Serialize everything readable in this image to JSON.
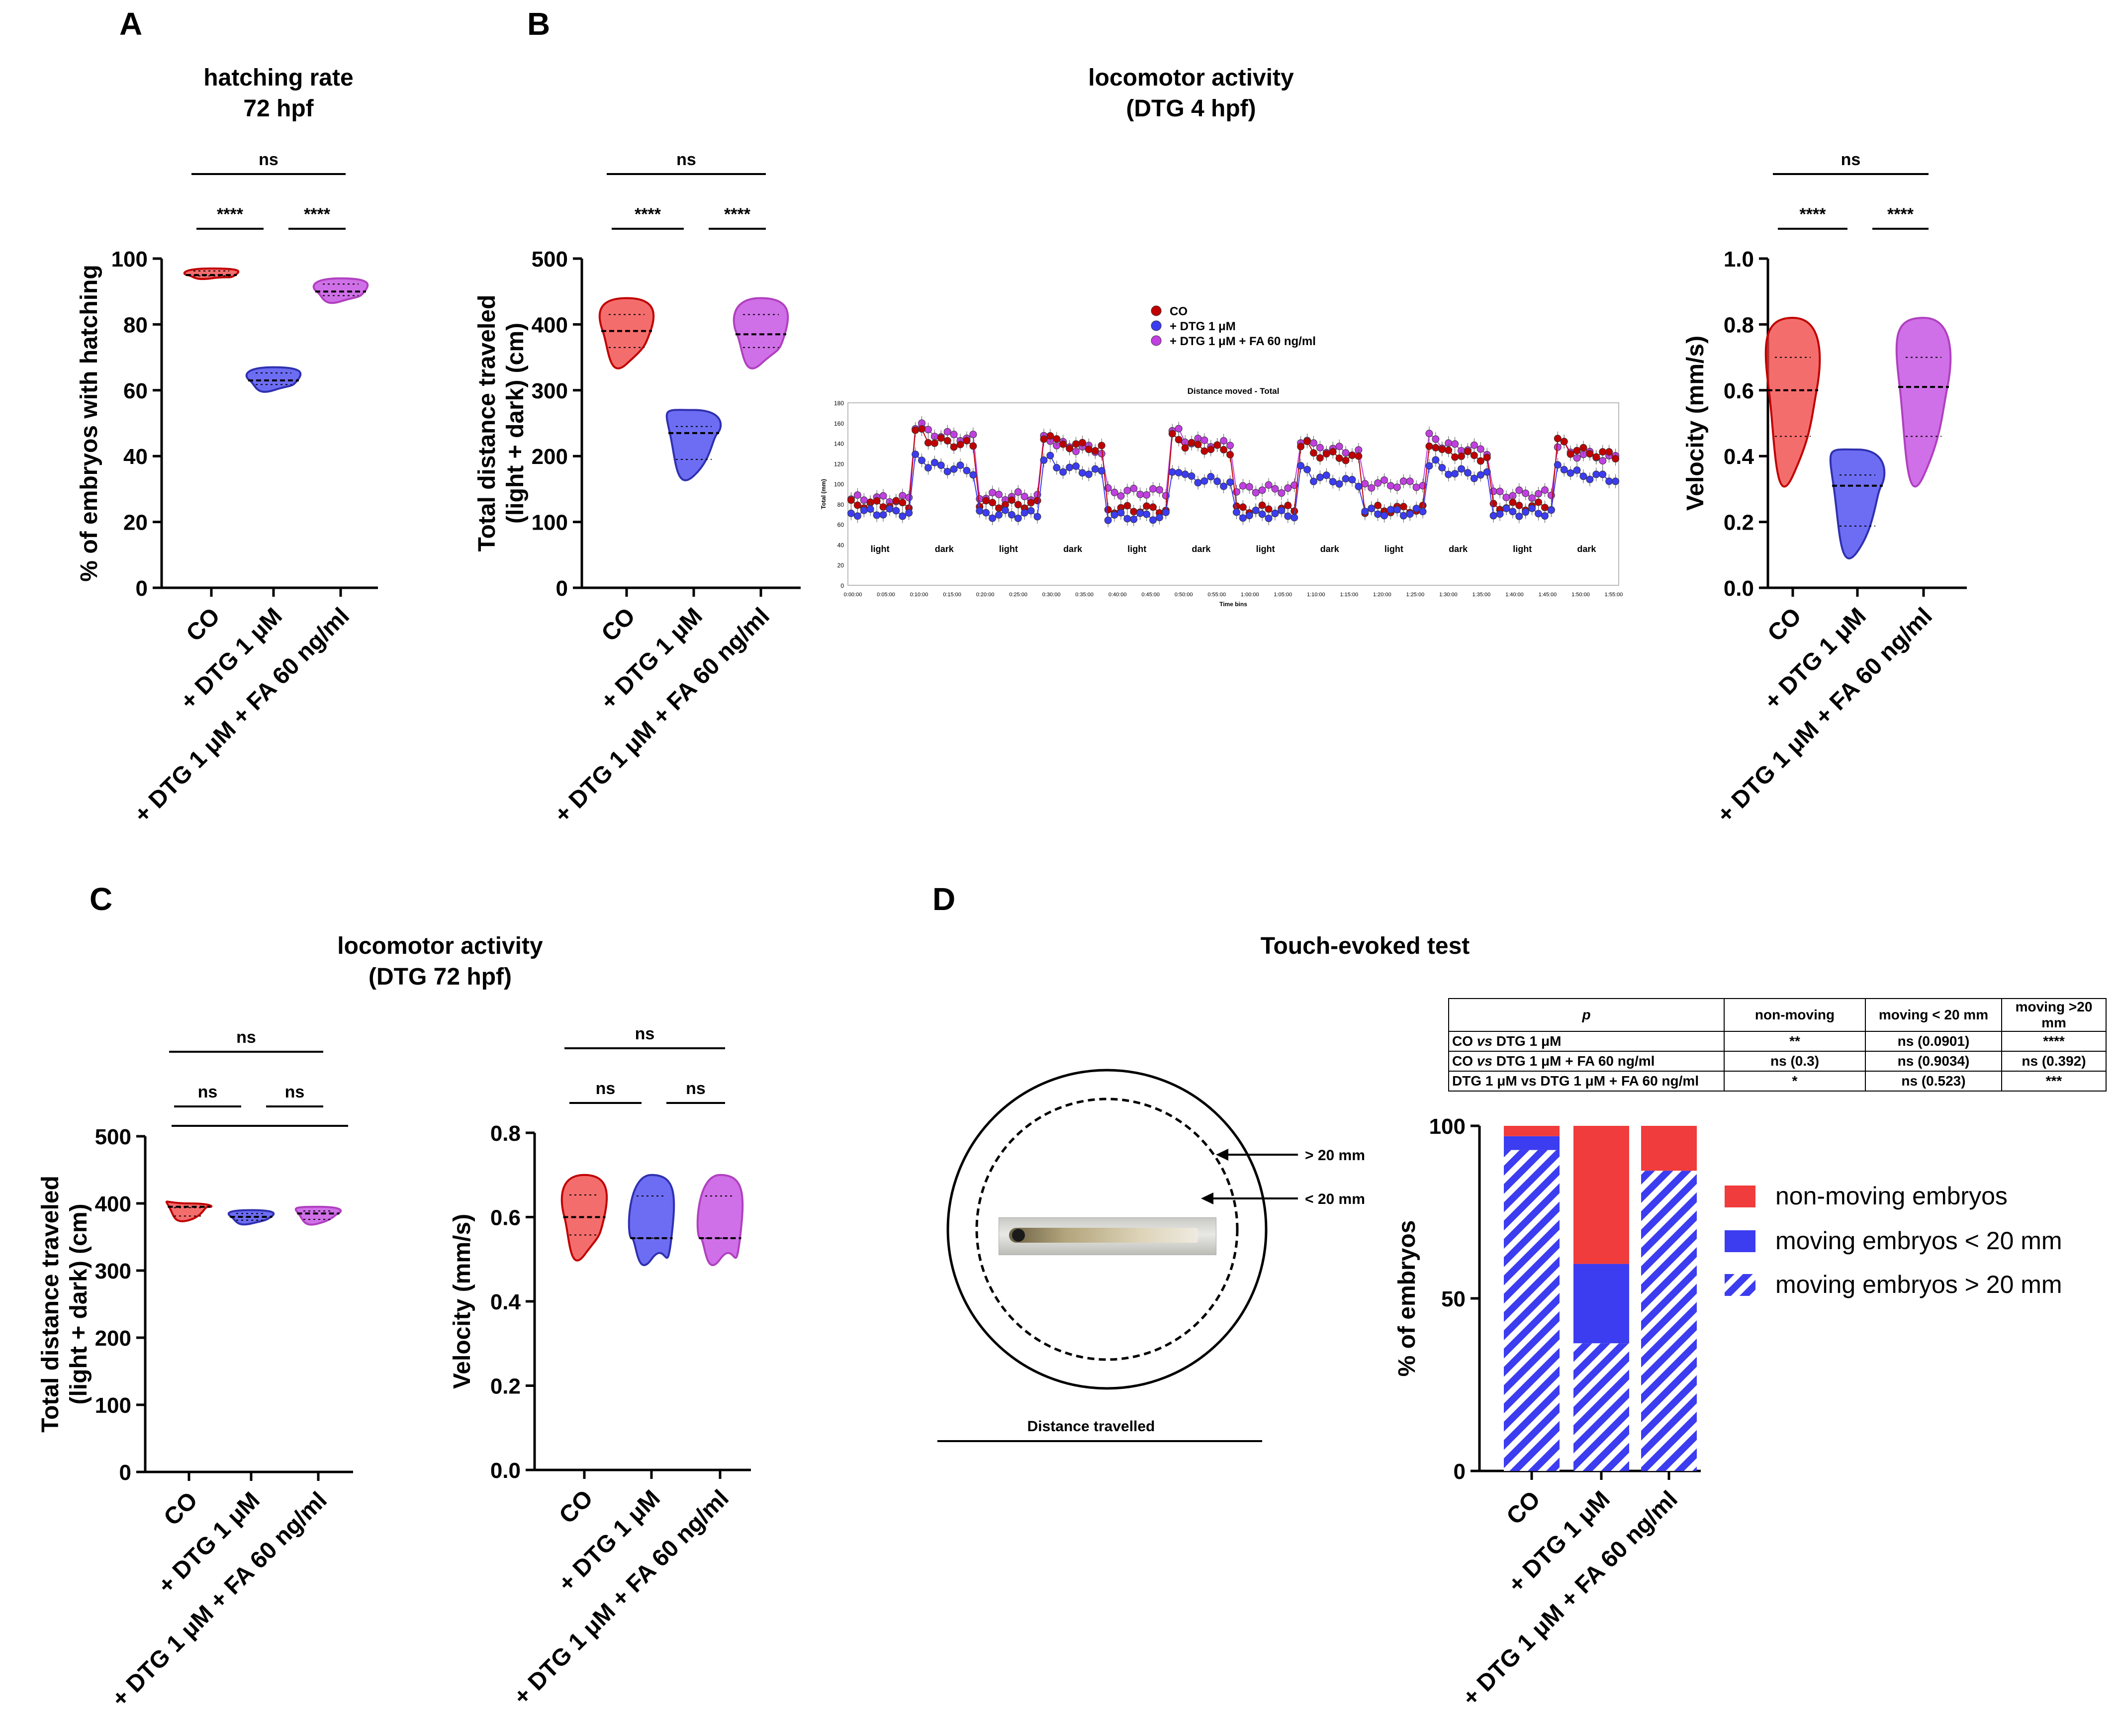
{
  "colors": {
    "co": "#f03c3c",
    "dtg": "#3c3cf0",
    "fa": "#c040e0",
    "co_dark": "#c00000",
    "dtg_dark": "#3030b0",
    "fa_dark": "#b040c0"
  },
  "panels": {
    "A": {
      "letter": "A",
      "title_line1": "hatching rate",
      "title_line2": "72 hpf"
    },
    "B": {
      "letter": "B",
      "title_line1": "locomotor activity",
      "title_line2": "(DTG 4 hpf)"
    },
    "C": {
      "letter": "C",
      "title_line1": "locomotor activity",
      "title_line2": "(DTG 72 hpf)"
    },
    "D": {
      "letter": "D",
      "title": "Touch-evoked test"
    }
  },
  "groups": [
    "CO",
    "+ DTG 1 μM",
    "+ DTG 1 μM + FA 60 ng/ml"
  ],
  "chart_data": [
    {
      "id": "A",
      "type": "violin",
      "ylabel": "% of embryos with hatching",
      "ylim": [
        0,
        100
      ],
      "yticks": [
        "0",
        "20",
        "40",
        "60",
        "80",
        "100"
      ],
      "groups": [
        {
          "median": 95,
          "min": 94,
          "max": 97
        },
        {
          "median": 63,
          "min": 60,
          "max": 67
        },
        {
          "median": 90,
          "min": 87,
          "max": 94
        }
      ],
      "significance": [
        {
          "from": 0,
          "to": 1,
          "label": "****"
        },
        {
          "from": 1,
          "to": 2,
          "label": "****"
        },
        {
          "from": 0,
          "to": 2,
          "label": "ns"
        }
      ]
    },
    {
      "id": "B1",
      "type": "violin",
      "ylabel_line1": "Total distance traveled",
      "ylabel_line2": "(light + dark) (cm)",
      "ylim": [
        0,
        500
      ],
      "yticks": [
        "0",
        "100",
        "200",
        "300",
        "400",
        "500"
      ],
      "groups": [
        {
          "median": 390,
          "min": 340,
          "max": 440
        },
        {
          "median": 235,
          "min": 170,
          "max": 270
        },
        {
          "median": 385,
          "min": 340,
          "max": 440
        }
      ],
      "significance": [
        {
          "from": 0,
          "to": 1,
          "label": "****"
        },
        {
          "from": 1,
          "to": 2,
          "label": "****"
        },
        {
          "from": 0,
          "to": 2,
          "label": "ns"
        }
      ]
    },
    {
      "id": "B2",
      "type": "line",
      "title": "Distance moved - Total",
      "ylabel": "Total (mm)",
      "xlabel": "Time bins",
      "ylim": [
        0,
        180
      ],
      "yticks": [
        "0",
        "20",
        "40",
        "60",
        "80",
        "100",
        "120",
        "140",
        "160",
        "180"
      ],
      "xticks": [
        "0:00:00",
        "0:05:00",
        "0:10:00",
        "0:15:00",
        "0:20:00",
        "0:25:00",
        "0:30:00",
        "0:35:00",
        "0:40:00",
        "0:45:00",
        "0:50:00",
        "0:55:00",
        "1:00:00",
        "1:05:00",
        "1:10:00",
        "1:15:00",
        "1:20:00",
        "1:25:00",
        "1:30:00",
        "1:35:00",
        "1:40:00",
        "1:45:00",
        "1:50:00",
        "1:55:00"
      ],
      "phase_labels": [
        "light",
        "dark",
        "light",
        "dark",
        "light",
        "dark",
        "light",
        "dark",
        "light",
        "dark",
        "light",
        "dark"
      ],
      "legend": [
        "CO",
        "+ DTG 1 μM",
        "+ DTG 1 μM + FA 60 ng/ml"
      ],
      "phase_means": {
        "co": [
          80,
          145,
          80,
          142,
          75,
          140,
          75,
          132,
          75,
          133,
          78,
          135
        ],
        "dtg": [
          72,
          120,
          70,
          118,
          68,
          108,
          70,
          108,
          72,
          115,
          72,
          112
        ],
        "fa": [
          85,
          152,
          88,
          140,
          92,
          145,
          95,
          138,
          100,
          140,
          90,
          132
        ]
      }
    },
    {
      "id": "B3",
      "type": "violin",
      "ylabel": "Velocity (mm/s)",
      "ylim": [
        0,
        1.0
      ],
      "yticks": [
        "0.0",
        "0.2",
        "0.4",
        "0.6",
        "0.8",
        "1.0"
      ],
      "groups": [
        {
          "median": 0.6,
          "min": 0.34,
          "max": 0.82
        },
        {
          "median": 0.31,
          "min": 0.11,
          "max": 0.42
        },
        {
          "median": 0.61,
          "min": 0.34,
          "max": 0.82
        }
      ],
      "significance": [
        {
          "from": 0,
          "to": 1,
          "label": "****"
        },
        {
          "from": 1,
          "to": 2,
          "label": "****"
        },
        {
          "from": 0,
          "to": 2,
          "label": "ns"
        }
      ]
    },
    {
      "id": "C1",
      "type": "violin",
      "ylabel_line1": "Total distance traveled",
      "ylabel_line2": "(light + dark) (cm)",
      "ylim": [
        0,
        500
      ],
      "yticks": [
        "0",
        "100",
        "200",
        "300",
        "400",
        "500"
      ],
      "groups": [
        {
          "median": 395,
          "min": 375,
          "max": 400
        },
        {
          "median": 380,
          "min": 370,
          "max": 390
        },
        {
          "median": 385,
          "min": 370,
          "max": 395
        }
      ],
      "significance": [
        {
          "from": 0,
          "to": 1,
          "label": "ns"
        },
        {
          "from": 1,
          "to": 2,
          "label": "ns"
        },
        {
          "from": 0,
          "to": 2,
          "label": "ns"
        }
      ]
    },
    {
      "id": "C2",
      "type": "violin",
      "ylabel": "Velocity (mm/s)",
      "ylim": [
        0,
        0.8
      ],
      "yticks": [
        "0.0",
        "0.2",
        "0.4",
        "0.6",
        "0.8"
      ],
      "groups": [
        {
          "median": 0.6,
          "min": 0.51,
          "max": 0.7
        },
        {
          "median": 0.55,
          "min": 0.5,
          "max": 0.7
        },
        {
          "median": 0.55,
          "min": 0.5,
          "max": 0.7
        }
      ],
      "significance": [
        {
          "from": 0,
          "to": 1,
          "label": "ns"
        },
        {
          "from": 1,
          "to": 2,
          "label": "ns"
        },
        {
          "from": 0,
          "to": 2,
          "label": "ns"
        }
      ]
    },
    {
      "id": "D",
      "type": "stacked-bar",
      "ylabel": "% of embryos",
      "ylim": [
        0,
        100
      ],
      "yticks": [
        "0",
        "50",
        "100"
      ],
      "series": [
        {
          "name": "moving embryos > 20 mm",
          "values": [
            93,
            37,
            87
          ]
        },
        {
          "name": "moving embryos < 20 mm",
          "values": [
            4,
            23,
            0
          ]
        },
        {
          "name": "non-moving embryos",
          "values": [
            3,
            40,
            13
          ]
        }
      ]
    }
  ],
  "diagram": {
    "outer_label": "> 20 mm",
    "inner_label": "< 20 mm",
    "caption": "Distance travelled"
  },
  "ptable": {
    "header": [
      "p",
      "non-moving",
      "moving < 20 mm",
      "moving >20 mm"
    ],
    "rows": [
      {
        "c0a": "CO",
        "c0b": "vs",
        "c0c": "DTG 1 μM",
        "c1": "**",
        "c2": "ns (0.0901)",
        "c3": "****"
      },
      {
        "c0a": "CO",
        "c0b": "vs",
        "c0c": "DTG 1 μM + FA 60 ng/ml",
        "c1": "ns (0.3)",
        "c2": "ns (0.9034)",
        "c3": "ns (0.392)"
      },
      {
        "c0a": "DTG 1 μM vs  DTG 1 μM + FA 60 ng/ml",
        "c0b": "",
        "c0c": "",
        "c1": "*",
        "c2": "ns (0.523)",
        "c3": "***"
      }
    ]
  }
}
